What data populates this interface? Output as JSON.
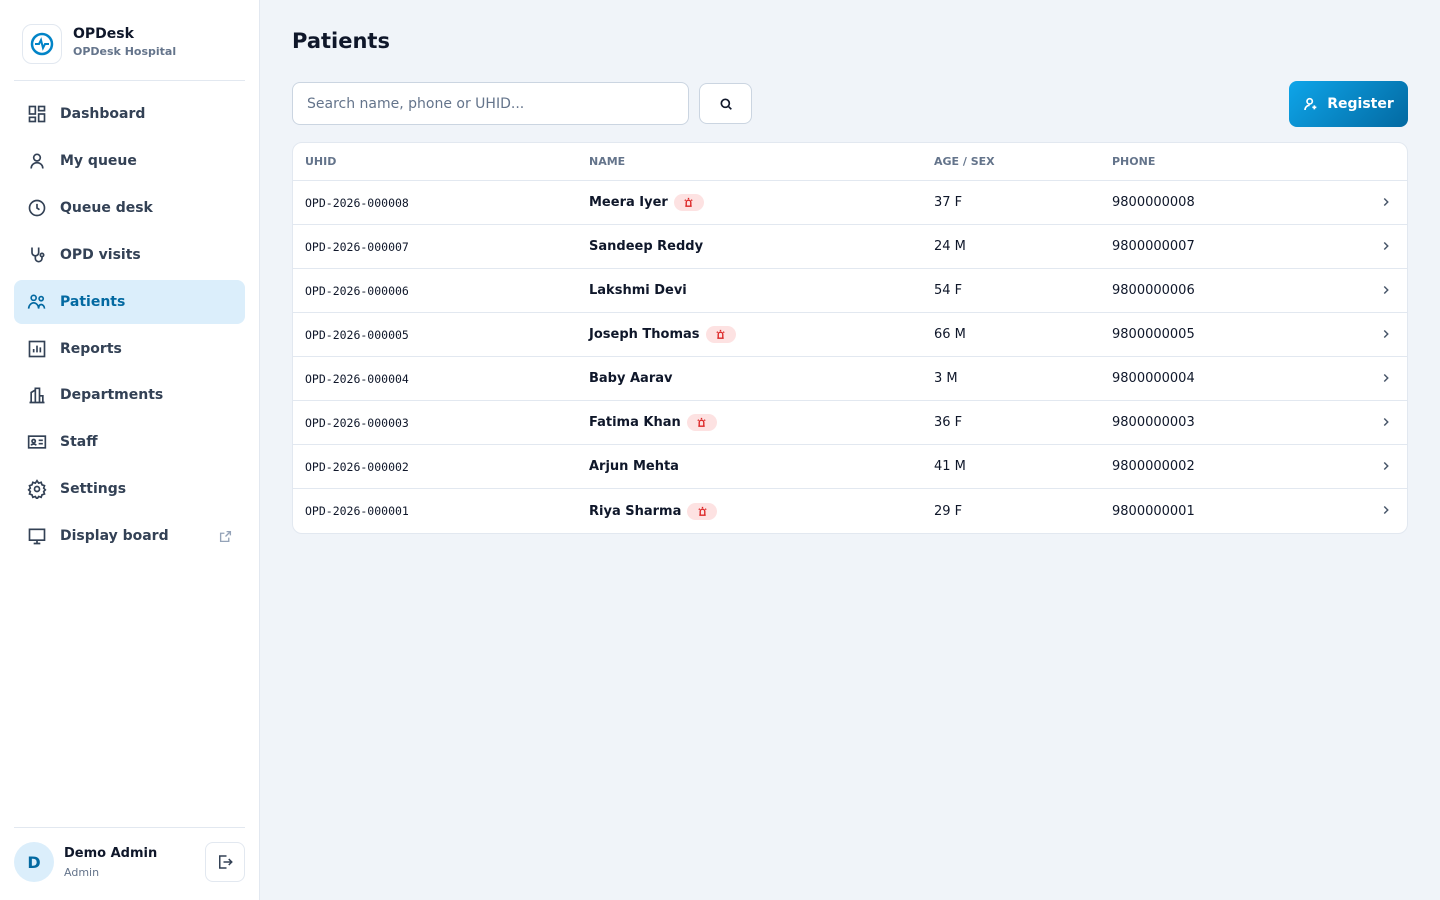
{
  "brand": {
    "name": "OPDesk",
    "subtitle": "OPDesk Hospital"
  },
  "nav": [
    "Dashboard",
    "My queue",
    "Queue desk",
    "OPD visits",
    "Patients",
    "Reports",
    "Departments",
    "Staff",
    "Settings",
    "Display board"
  ],
  "user": {
    "initial": "D",
    "name": "Demo Admin",
    "role": "Admin"
  },
  "page": {
    "title": "Patients",
    "search_placeholder": "Search name, phone or UHID...",
    "register_button": "Register"
  },
  "table": {
    "headers": [
      "UHID",
      "NAME",
      "AGE / SEX",
      "PHONE"
    ],
    "rows": [
      {
        "uhid": "OPD-2026-000008",
        "name": "Meera Iyer",
        "age_sex": "37 F",
        "phone": "9800000008",
        "flagged": true
      },
      {
        "uhid": "OPD-2026-000007",
        "name": "Sandeep Reddy",
        "age_sex": "24 M",
        "phone": "9800000007",
        "flagged": false
      },
      {
        "uhid": "OPD-2026-000006",
        "name": "Lakshmi Devi",
        "age_sex": "54 F",
        "phone": "9800000006",
        "flagged": false
      },
      {
        "uhid": "OPD-2026-000005",
        "name": "Joseph Thomas",
        "age_sex": "66 M",
        "phone": "9800000005",
        "flagged": true
      },
      {
        "uhid": "OPD-2026-000004",
        "name": "Baby Aarav",
        "age_sex": "3 M",
        "phone": "9800000004",
        "flagged": false
      },
      {
        "uhid": "OPD-2026-000003",
        "name": "Fatima Khan",
        "age_sex": "36 F",
        "phone": "9800000003",
        "flagged": true
      },
      {
        "uhid": "OPD-2026-000002",
        "name": "Arjun Mehta",
        "age_sex": "41 M",
        "phone": "9800000002",
        "flagged": false
      },
      {
        "uhid": "OPD-2026-000001",
        "name": "Riya Sharma",
        "age_sex": "29 F",
        "phone": "9800000001",
        "flagged": true
      }
    ]
  }
}
